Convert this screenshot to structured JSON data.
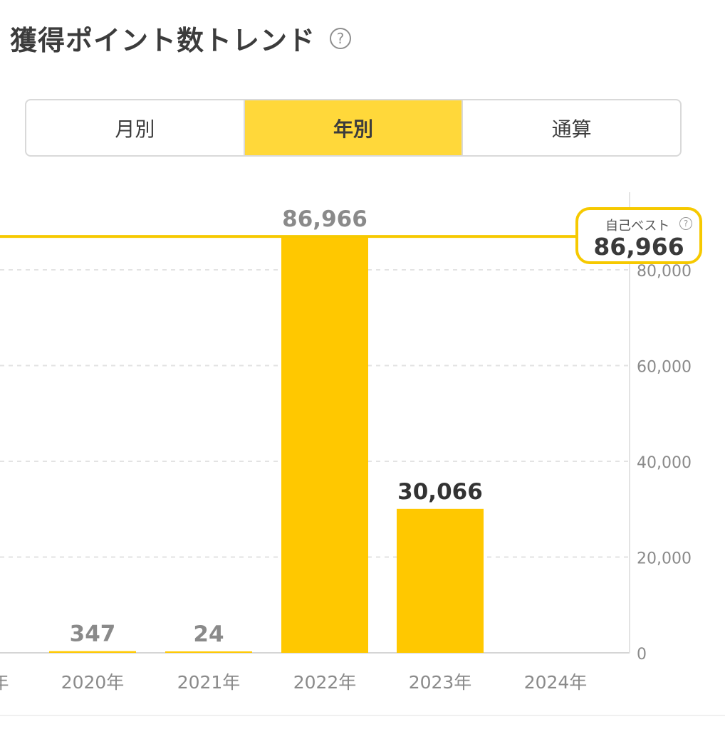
{
  "header": {
    "title": "獲得ポイント数トレンド",
    "help_icon": "question-circle-icon",
    "help_glyph": "?"
  },
  "tabs": [
    {
      "label": "月別",
      "active": false
    },
    {
      "label": "年別",
      "active": true
    },
    {
      "label": "通算",
      "active": false
    }
  ],
  "colors": {
    "accent": "#ffc800",
    "tab_active": "#ffd83a",
    "best_line": "#f6c900"
  },
  "personal_best": {
    "label": "自己ベスト",
    "help_glyph": "?",
    "value": "86,966"
  },
  "chart_data": {
    "type": "bar",
    "categories": [
      "年",
      "2020年",
      "2021年",
      "2022年",
      "2023年",
      "2024年"
    ],
    "values": [
      null,
      347,
      24,
      86966,
      30066,
      null
    ],
    "data_labels": [
      "",
      "347",
      "24",
      "86,966",
      "30,066",
      ""
    ],
    "highlight_index": 4,
    "reference_line": {
      "value": 86966
    },
    "yticks": [
      {
        "value": 0,
        "label": "0"
      },
      {
        "value": 20000,
        "label": "20,000"
      },
      {
        "value": 40000,
        "label": "40,000"
      },
      {
        "value": 60000,
        "label": "60,000"
      },
      {
        "value": 80000,
        "label": "80,000"
      }
    ],
    "ylim": [
      0,
      86966
    ],
    "y_axis_position": "right",
    "grid": true
  }
}
